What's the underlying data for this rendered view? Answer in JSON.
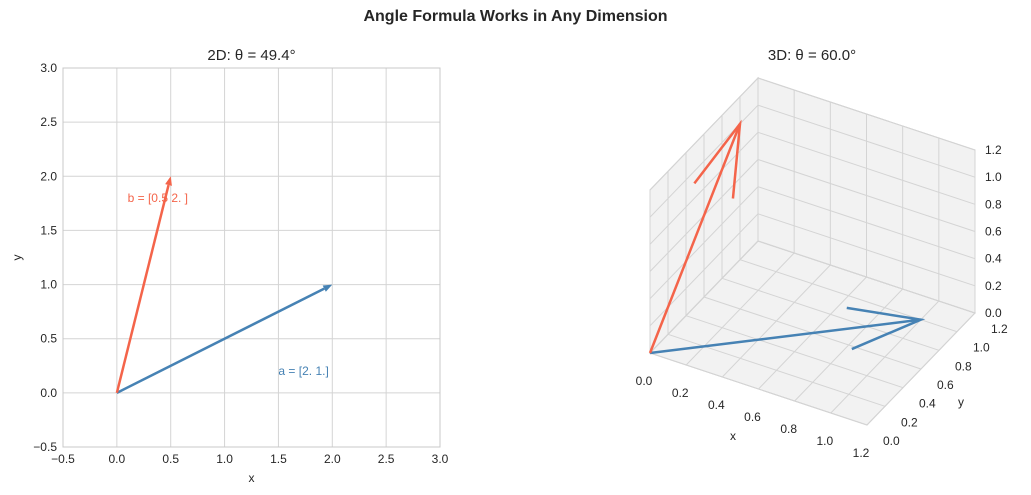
{
  "figure": {
    "suptitle": "Angle Formula Works in Any Dimension"
  },
  "colors": {
    "a": "#4682b4",
    "b": "#f4644a",
    "grid": "#d4d4d4",
    "spine": "#c8c8c8",
    "pane": "#f2f2f2"
  },
  "chart_data": [
    {
      "type": "line",
      "title": "2D: θ = 49.4°",
      "xlabel": "x",
      "ylabel": "y",
      "xlim": [
        -0.5,
        3.0
      ],
      "ylim": [
        -0.5,
        3.0
      ],
      "xticks": [
        "−0.5",
        "0.0",
        "0.5",
        "1.0",
        "1.5",
        "2.0",
        "2.5",
        "3.0"
      ],
      "yticks": [
        "−0.5",
        "0.0",
        "0.5",
        "1.0",
        "1.5",
        "2.0",
        "2.5",
        "3.0"
      ],
      "grid": true,
      "series": [
        {
          "name": "a",
          "label": "a = [2. 1.]",
          "start": [
            0,
            0
          ],
          "end": [
            2.0,
            1.0
          ],
          "label_at": [
            1.5,
            0.2
          ]
        },
        {
          "name": "b",
          "label": "b = [0.5 2. ]",
          "start": [
            0,
            0
          ],
          "end": [
            0.5,
            2.0
          ],
          "label_at": [
            0.1,
            1.8
          ]
        }
      ]
    },
    {
      "type": "line",
      "title": "3D: θ = 60.0°",
      "xlabel": "x",
      "ylabel": "y",
      "zlabel": "",
      "xlim": [
        0.0,
        1.2
      ],
      "ylim": [
        0.0,
        1.2
      ],
      "zlim": [
        0.0,
        1.2
      ],
      "xticks": [
        "0.0",
        "0.2",
        "0.4",
        "0.6",
        "0.8",
        "1.0",
        "1.2"
      ],
      "yticks": [
        "0.0",
        "0.2",
        "0.4",
        "0.6",
        "0.8",
        "1.0",
        "1.2"
      ],
      "zticks": [
        "0.0",
        "0.2",
        "0.4",
        "0.6",
        "0.8",
        "1.0",
        "1.2"
      ],
      "grid": true,
      "series": [
        {
          "name": "a",
          "start": [
            0,
            0,
            0
          ],
          "end": [
            1,
            1,
            0
          ]
        },
        {
          "name": "b",
          "start": [
            0,
            0,
            0
          ],
          "end": [
            0,
            1,
            1
          ]
        }
      ]
    }
  ]
}
